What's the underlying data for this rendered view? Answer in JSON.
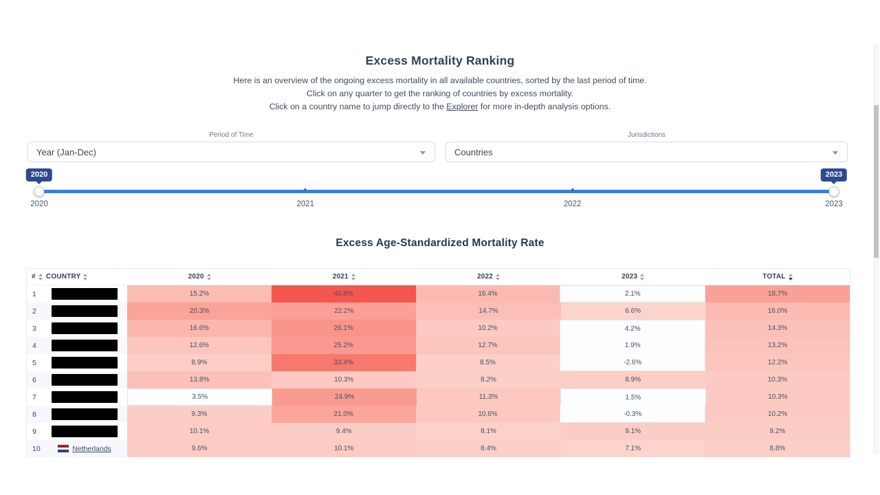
{
  "header": {
    "title": "Excess Mortality Ranking",
    "line1": "Here is an overview of the ongoing excess mortality in all available countries, sorted by the last period of time.",
    "line2": "Click on any quarter to get the ranking of countries by excess mortality.",
    "line3_pre": "Click on a country name to jump directly to the ",
    "line3_link": "Explorer",
    "line3_post": " for more in-depth analysis options."
  },
  "filters": {
    "period_label": "Period of Time",
    "period_value": "Year (Jan-Dec)",
    "jurisdictions_label": "Jurisdictions",
    "jurisdictions_value": "Countries"
  },
  "slider": {
    "start_tooltip": "2020",
    "end_tooltip": "2023",
    "tick_labels": [
      "2020",
      "2021",
      "2022",
      "2023"
    ],
    "tick_positions_pct": [
      0,
      33.5,
      67.1,
      100
    ],
    "dot_positions_pct": [
      33.5,
      67.1
    ],
    "track_color": "#2f80ed",
    "tooltip_color": "#2c4a8e"
  },
  "table": {
    "title": "Excess Age-Standardized Mortality Rate",
    "columns": [
      {
        "label": "#",
        "type": "rank"
      },
      {
        "label": "COUNTRY",
        "type": "country"
      },
      {
        "label": "2020",
        "type": "value"
      },
      {
        "label": "2021",
        "type": "value"
      },
      {
        "label": "2022",
        "type": "value"
      },
      {
        "label": "2023",
        "type": "value"
      },
      {
        "label": "TOTAL",
        "type": "value",
        "sorted": "desc"
      }
    ],
    "white_cell_bg": "#fbfdfe",
    "white_cell_border": "#dfe7ee",
    "rows": [
      {
        "rank": "1",
        "country": {
          "redacted": true
        },
        "values": [
          {
            "v": "15.2%",
            "bg": "#fbbcb4"
          },
          {
            "v": "40.8%",
            "bg": "#f5564d"
          },
          {
            "v": "16.4%",
            "bg": "#fbb9b1"
          },
          {
            "v": "2.1%",
            "w": true
          },
          {
            "v": "18.7%",
            "bg": "#f9a197"
          }
        ]
      },
      {
        "rank": "2",
        "country": {
          "redacted": true
        },
        "values": [
          {
            "v": "20.3%",
            "bg": "#faa399"
          },
          {
            "v": "22.2%",
            "bg": "#faa096"
          },
          {
            "v": "14.7%",
            "bg": "#fbbfb7"
          },
          {
            "v": "6.6%",
            "bg": "#fdd4cc"
          },
          {
            "v": "16.0%",
            "bg": "#fbbab2"
          }
        ]
      },
      {
        "rank": "3",
        "country": {
          "redacted": true
        },
        "values": [
          {
            "v": "16.6%",
            "bg": "#fbb7af"
          },
          {
            "v": "26.1%",
            "bg": "#f9948a"
          },
          {
            "v": "10.2%",
            "bg": "#fccac2"
          },
          {
            "v": "4.2%",
            "w": true
          },
          {
            "v": "14.3%",
            "bg": "#fbc0b8"
          }
        ]
      },
      {
        "rank": "4",
        "country": {
          "redacted": true
        },
        "values": [
          {
            "v": "12.6%",
            "bg": "#fcc5bd"
          },
          {
            "v": "25.2%",
            "bg": "#f99990"
          },
          {
            "v": "12.7%",
            "bg": "#fcc5bd"
          },
          {
            "v": "1.9%",
            "w": true
          },
          {
            "v": "13.2%",
            "bg": "#fbc3bb"
          }
        ]
      },
      {
        "rank": "5",
        "country": {
          "redacted": true
        },
        "values": [
          {
            "v": "8.9%",
            "bg": "#fccec6"
          },
          {
            "v": "33.4%",
            "bg": "#f7786d"
          },
          {
            "v": "8.5%",
            "bg": "#fccfc7"
          },
          {
            "v": "-2.6%",
            "w": true
          },
          {
            "v": "12.2%",
            "bg": "#fcc6be"
          }
        ]
      },
      {
        "rank": "6",
        "country": {
          "redacted": true
        },
        "values": [
          {
            "v": "13.8%",
            "bg": "#fbc1b9"
          },
          {
            "v": "10.3%",
            "bg": "#fccac2"
          },
          {
            "v": "8.2%",
            "bg": "#fcd0c8"
          },
          {
            "v": "8.9%",
            "bg": "#fccec6"
          },
          {
            "v": "10.3%",
            "bg": "#fccac2"
          }
        ]
      },
      {
        "rank": "7",
        "country": {
          "redacted": true
        },
        "values": [
          {
            "v": "3.5%",
            "w": true
          },
          {
            "v": "24.9%",
            "bg": "#f99b91"
          },
          {
            "v": "11.3%",
            "bg": "#fcc8c0"
          },
          {
            "v": "1.5%",
            "w": true
          },
          {
            "v": "10.3%",
            "bg": "#fccac2"
          }
        ]
      },
      {
        "rank": "8",
        "country": {
          "redacted": true
        },
        "values": [
          {
            "v": "9.3%",
            "bg": "#fccdc5"
          },
          {
            "v": "21.0%",
            "bg": "#faa49a"
          },
          {
            "v": "10.6%",
            "bg": "#fcc9c1"
          },
          {
            "v": "-0.3%",
            "w": true
          },
          {
            "v": "10.2%",
            "bg": "#fccac2"
          }
        ]
      },
      {
        "rank": "9",
        "country": {
          "redacted": true
        },
        "values": [
          {
            "v": "10.1%",
            "bg": "#fccbc3"
          },
          {
            "v": "9.4%",
            "bg": "#fccdc5"
          },
          {
            "v": "8.1%",
            "bg": "#fcd1c9"
          },
          {
            "v": "9.1%",
            "bg": "#fccdc6"
          },
          {
            "v": "9.2%",
            "bg": "#fccdc5"
          }
        ]
      },
      {
        "rank": "10",
        "country": {
          "name": "Netherlands",
          "flag": [
            "#AE1C28",
            "#ffffff",
            "#21468B"
          ]
        },
        "values": [
          {
            "v": "9.6%",
            "bg": "#fcccc4"
          },
          {
            "v": "10.1%",
            "bg": "#fccbc3"
          },
          {
            "v": "8.4%",
            "bg": "#fcd0c8"
          },
          {
            "v": "7.1%",
            "bg": "#fdd3cb"
          },
          {
            "v": "8.8%",
            "bg": "#fccfc7"
          }
        ]
      }
    ]
  }
}
